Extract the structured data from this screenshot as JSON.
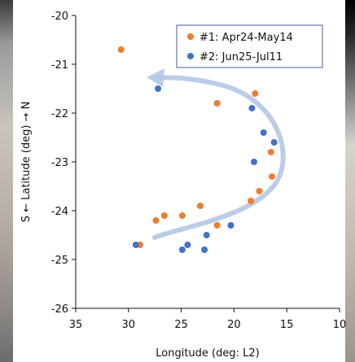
{
  "chart_data": {
    "type": "scatter",
    "title": "",
    "xlabel": "Longitude (deg: L2)",
    "ylabel": "S ← Latitude (deg) → N",
    "xlim": [
      35,
      10
    ],
    "ylim": [
      -26,
      -20
    ],
    "x_reversed": true,
    "x_ticks": [
      35,
      30,
      25,
      20,
      15,
      10
    ],
    "y_ticks": [
      -20,
      -21,
      -22,
      -23,
      -24,
      -25,
      -26
    ],
    "grid": false,
    "legend_position": "top-right",
    "series": [
      {
        "name": "#1: Apr24-May14",
        "color": "#ED7D31",
        "points": [
          [
            30.7,
            -20.7
          ],
          [
            21.6,
            -21.8
          ],
          [
            18.0,
            -21.6
          ],
          [
            16.5,
            -22.8
          ],
          [
            16.4,
            -23.3
          ],
          [
            17.6,
            -23.6
          ],
          [
            18.4,
            -23.8
          ],
          [
            21.6,
            -24.3
          ],
          [
            23.2,
            -23.9
          ],
          [
            24.9,
            -24.1
          ],
          [
            26.6,
            -24.1
          ],
          [
            27.4,
            -24.2
          ],
          [
            28.9,
            -24.7
          ]
        ]
      },
      {
        "name": "#2: Jun25-Jul11",
        "color": "#4472C4",
        "points": [
          [
            27.2,
            -21.5
          ],
          [
            18.3,
            -21.9
          ],
          [
            17.2,
            -22.4
          ],
          [
            16.2,
            -22.6
          ],
          [
            18.1,
            -23.0
          ],
          [
            20.3,
            -24.3
          ],
          [
            22.6,
            -24.5
          ],
          [
            22.8,
            -24.8
          ],
          [
            24.4,
            -24.7
          ],
          [
            24.9,
            -24.8
          ],
          [
            29.3,
            -24.7
          ]
        ]
      }
    ],
    "annotations": [
      {
        "type": "curved-arrow",
        "description": "motion trend",
        "color": "#B4C7E7"
      }
    ]
  }
}
